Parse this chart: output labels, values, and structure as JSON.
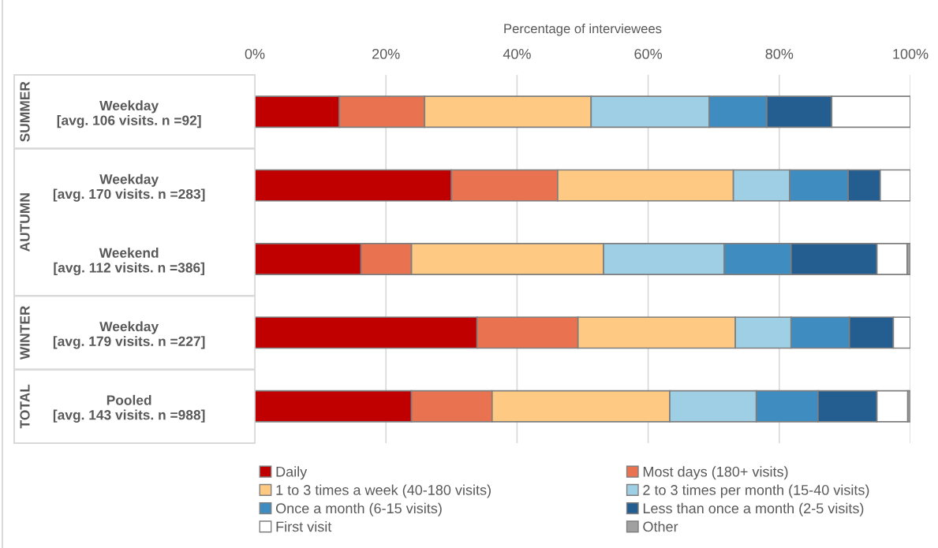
{
  "chart_data": {
    "type": "bar",
    "orientation": "horizontal",
    "stacked": true,
    "xlabel": "Percentage of interviewees",
    "categories": [
      "Weekday\n[avg. 106 visits. n =92]",
      "Weekday\n[avg. 170 visits. n =283]",
      "Weekend\n[avg. 112 visits. n =386]",
      "Weekday\n[avg. 179 visits. n =227]",
      "Pooled\n[avg. 143 visits. n =988]"
    ],
    "series": [
      {
        "name": "Daily",
        "color": "#c00000",
        "values": [
          12.9,
          30.0,
          16.2,
          33.9,
          23.9
        ]
      },
      {
        "name": "Most days (180+ visits)",
        "color": "#e97350",
        "values": [
          13.0,
          16.2,
          7.7,
          15.4,
          12.3
        ]
      },
      {
        "name": "1 to 3 times a week (40-180 visits)",
        "color": "#fdc983",
        "values": [
          25.4,
          26.8,
          29.3,
          24.0,
          27.1
        ]
      },
      {
        "name": "2 to 3 times per month (15-40 visits)",
        "color": "#9ecfe4",
        "values": [
          18.0,
          8.6,
          18.4,
          8.5,
          13.2
        ]
      },
      {
        "name": "Once a month (6-15 visits)",
        "color": "#3f8dc0",
        "values": [
          8.8,
          8.9,
          10.2,
          8.9,
          9.4
        ]
      },
      {
        "name": "Less than once a month (2-5 visits)",
        "color": "#245e91",
        "values": [
          9.9,
          4.9,
          13.1,
          6.7,
          9.0
        ]
      },
      {
        "name": "First visit",
        "color": "#ffffff",
        "values": [
          12.0,
          4.6,
          4.6,
          2.6,
          4.7
        ]
      },
      {
        "name": "Other",
        "color": "#a0a0a0",
        "values": [
          0,
          0,
          0.5,
          0,
          0.4
        ]
      }
    ],
    "xlim": [
      0,
      100
    ],
    "xticks": [
      {
        "value": 0,
        "label": "0%"
      },
      {
        "value": 20,
        "label": "20%"
      },
      {
        "value": 40,
        "label": "40%"
      },
      {
        "value": 60,
        "label": "60%"
      },
      {
        "value": 80,
        "label": "80%"
      },
      {
        "value": 100,
        "label": "100%"
      }
    ],
    "grid": "x",
    "legend": "bottom",
    "annotations": [
      "SUMMER",
      "AUTUMN",
      "WINTER",
      "TOTAL"
    ]
  }
}
